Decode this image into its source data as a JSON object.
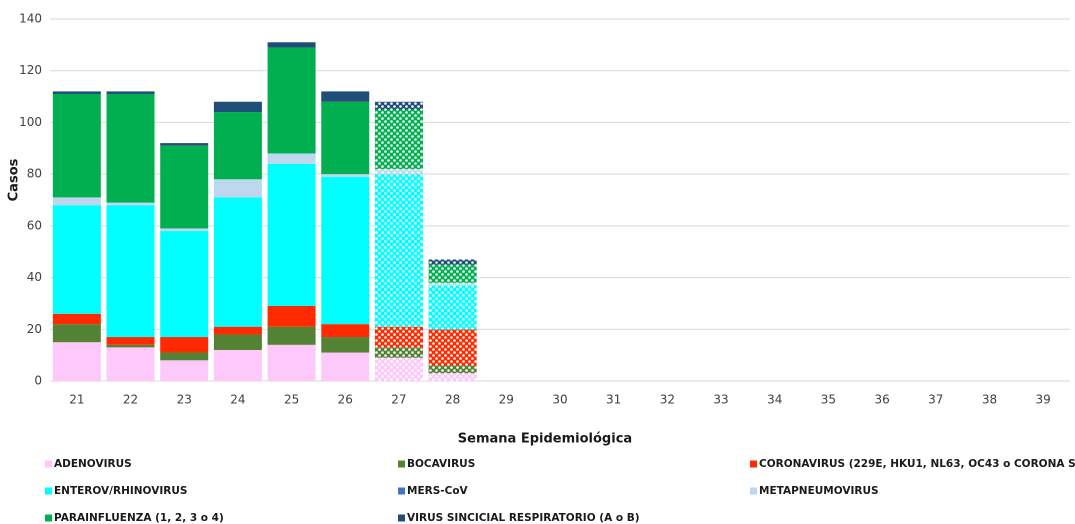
{
  "chart_data": {
    "type": "stacked_bar",
    "x_label": "Semana Epidemiológica",
    "y_label": "Casos",
    "categories": [
      "21",
      "22",
      "23",
      "24",
      "25",
      "26",
      "27",
      "28",
      "29",
      "30",
      "31",
      "32",
      "33",
      "34",
      "35",
      "36",
      "37",
      "38",
      "39"
    ],
    "hatched_categories": [
      "27",
      "28"
    ],
    "series": [
      {
        "name": "ADENOVIRUS",
        "color": "#ffc8fa",
        "values": [
          15,
          13,
          8,
          12,
          14,
          11,
          9,
          3,
          0,
          0,
          0,
          0,
          0,
          0,
          0,
          0,
          0,
          0,
          0
        ]
      },
      {
        "name": "BOCAVIRUS",
        "color": "#548235",
        "values": [
          7,
          1,
          3,
          6,
          7,
          6,
          4,
          3,
          0,
          0,
          0,
          0,
          0,
          0,
          0,
          0,
          0,
          0,
          0
        ]
      },
      {
        "name": "CORONAVIRUS (229E, HKU1, NL63, OC43 o CORONA SARS)",
        "color": "#ff2a00",
        "values": [
          4,
          3,
          6,
          3,
          8,
          5,
          8,
          14,
          0,
          0,
          0,
          0,
          0,
          0,
          0,
          0,
          0,
          0,
          0
        ]
      },
      {
        "name": "ENTEROV/RHINOVIRUS",
        "color": "#00ffff",
        "values": [
          42,
          51,
          41,
          50,
          55,
          57,
          59,
          17,
          0,
          0,
          0,
          0,
          0,
          0,
          0,
          0,
          0,
          0,
          0
        ]
      },
      {
        "name": "MERS-CoV",
        "color": "#4472c4",
        "values": [
          0,
          0,
          0,
          0,
          0,
          0,
          0,
          0,
          0,
          0,
          0,
          0,
          0,
          0,
          0,
          0,
          0,
          0,
          0
        ]
      },
      {
        "name": "METAPNEUMOVIRUS",
        "color": "#bdd7ee",
        "values": [
          3,
          1,
          1,
          7,
          4,
          1,
          2,
          1,
          0,
          0,
          0,
          0,
          0,
          0,
          0,
          0,
          0,
          0,
          0
        ]
      },
      {
        "name": "PARAINFLUENZA (1, 2, 3 o 4)",
        "color": "#00b050",
        "values": [
          40,
          42,
          32,
          26,
          41,
          28,
          23,
          7,
          0,
          0,
          0,
          0,
          0,
          0,
          0,
          0,
          0,
          0,
          0
        ]
      },
      {
        "name": "VIRUS SINCICIAL RESPIRATORIO (A o B)",
        "color": "#1f4e79",
        "values": [
          1,
          1,
          1,
          4,
          2,
          4,
          3,
          2,
          0,
          0,
          0,
          0,
          0,
          0,
          0,
          0,
          0,
          0,
          0
        ]
      }
    ],
    "ylim": [
      0,
      140
    ],
    "yticks": [
      0,
      20,
      40,
      60,
      80,
      100,
      120,
      140
    ],
    "grid": true,
    "legend": "bottom"
  }
}
